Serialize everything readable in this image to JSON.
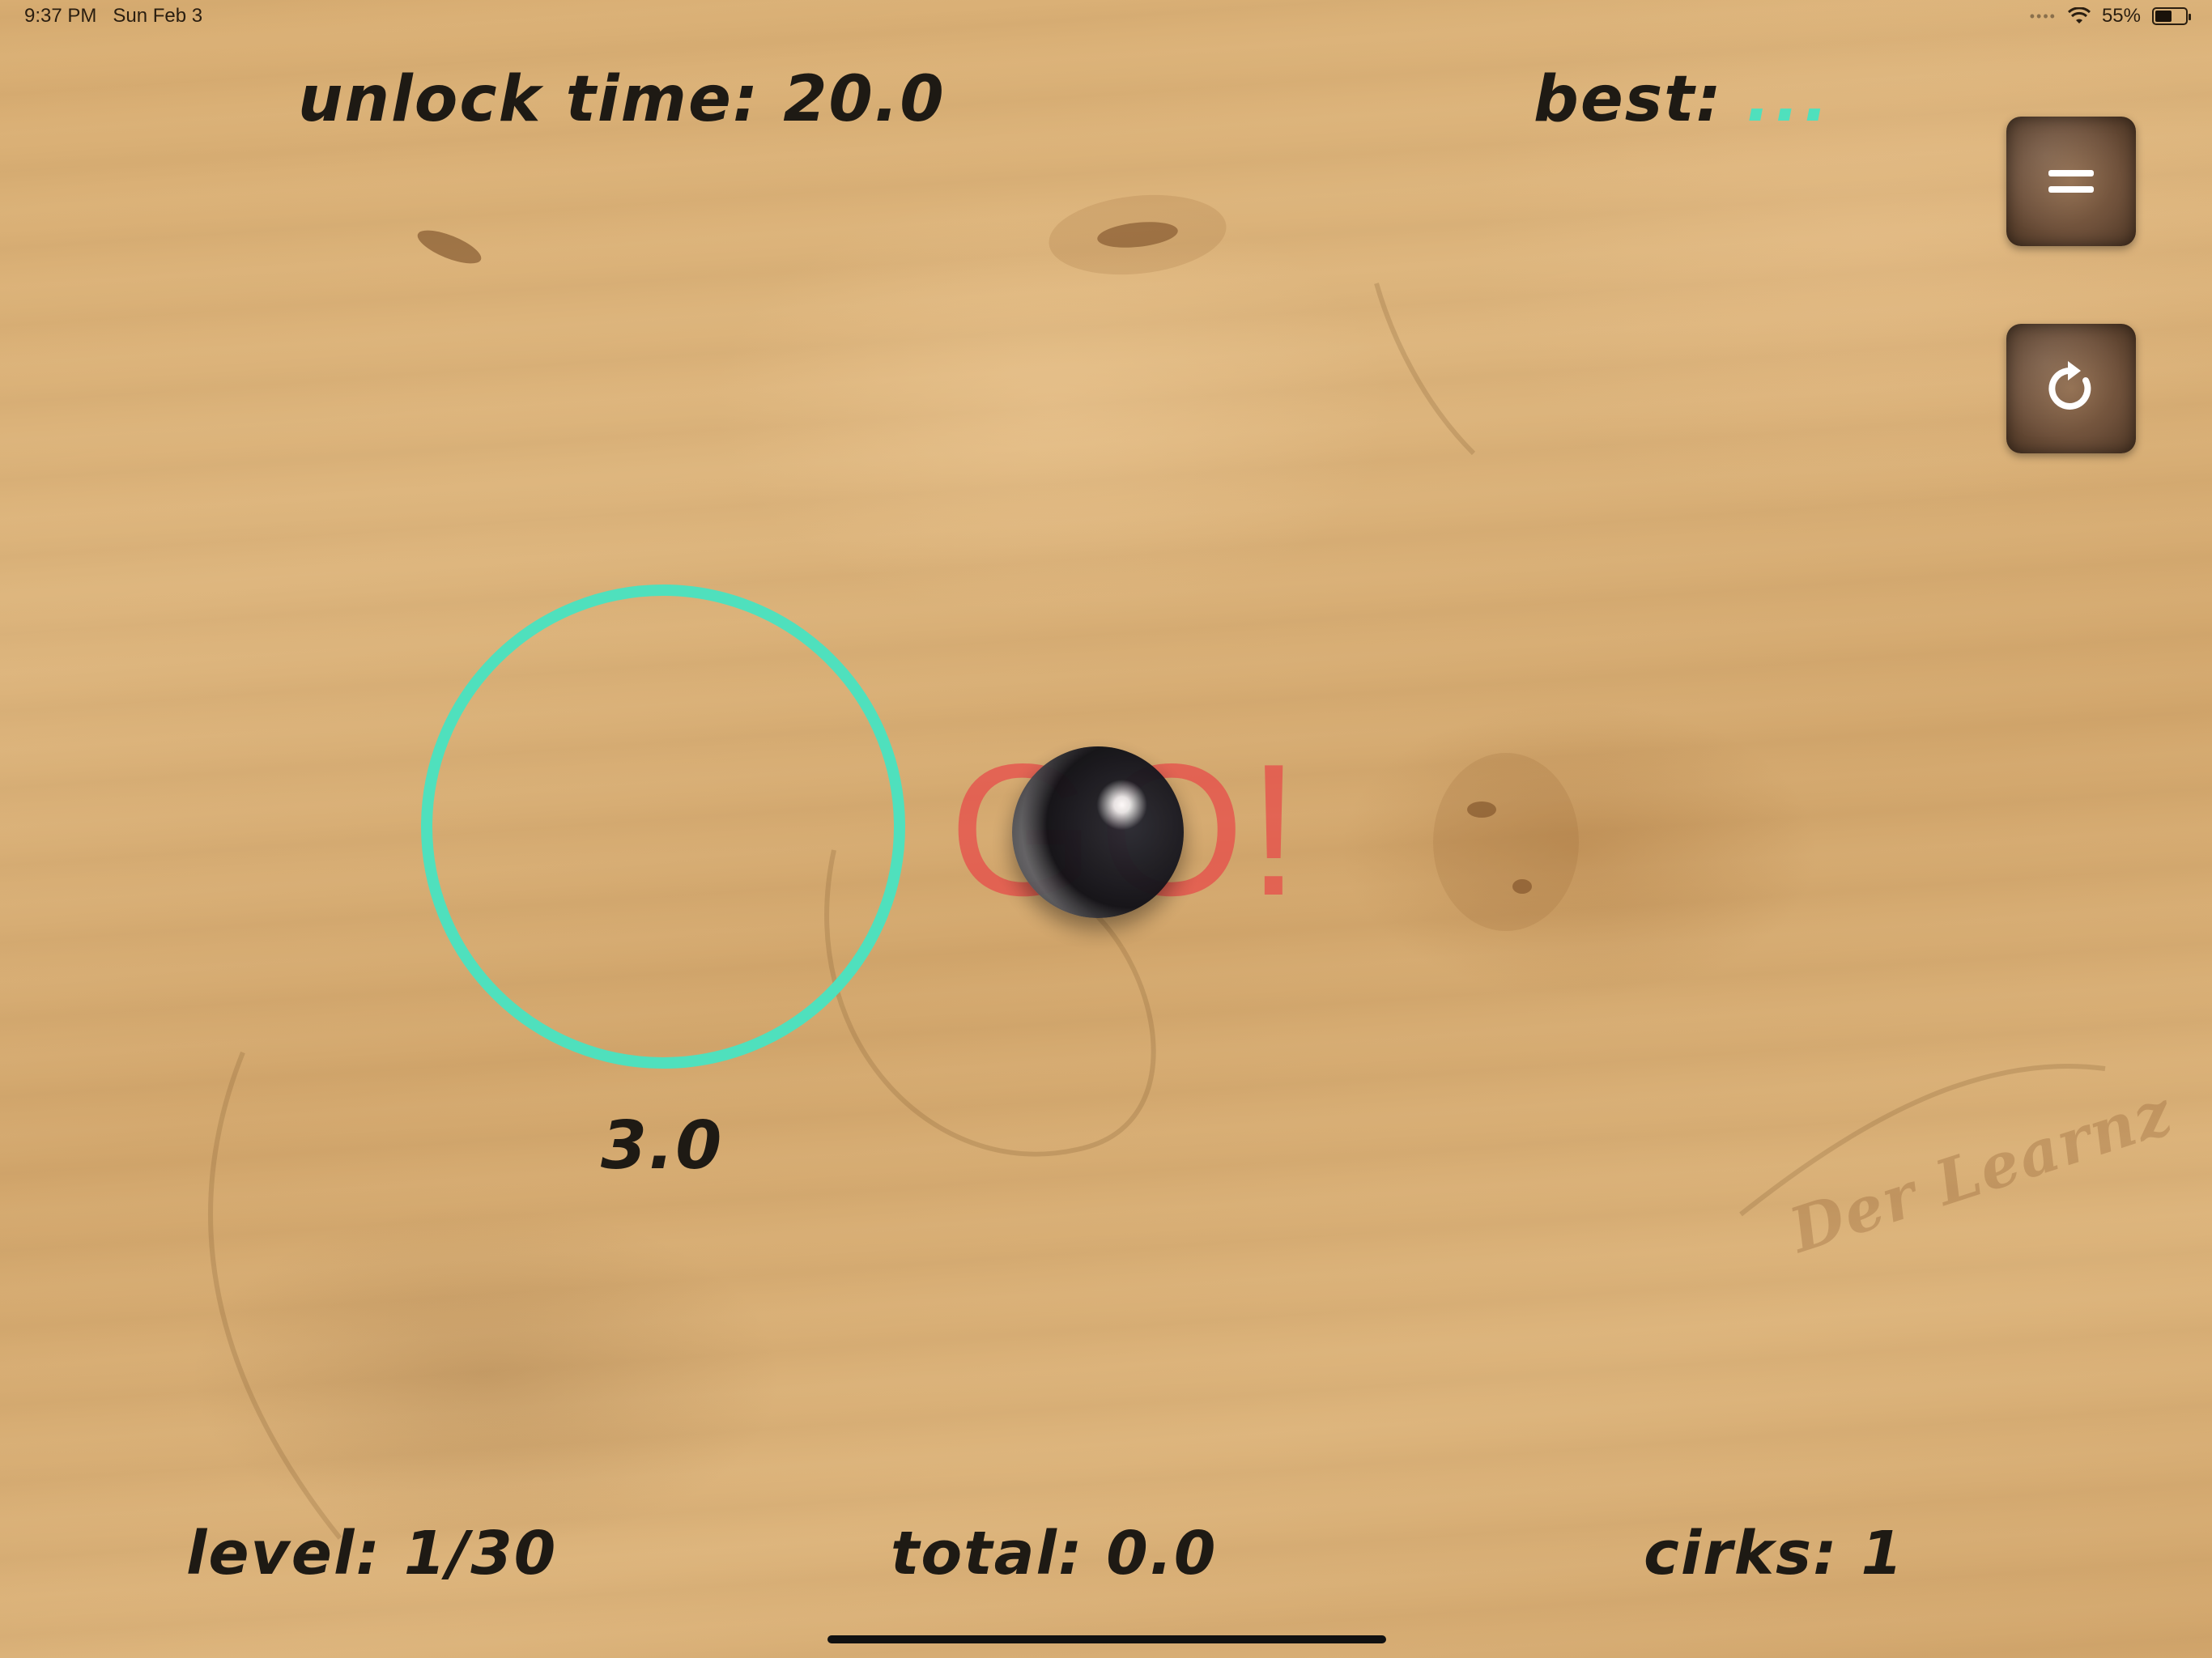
{
  "status_bar": {
    "time": "9:37 PM",
    "date": "Sun Feb 3",
    "battery_percent": "55%",
    "battery_level": 0.55
  },
  "hud": {
    "unlock_time": "unlock time: 20.0",
    "best_label": "best:",
    "best_value": "...",
    "level": "level: 1/30",
    "total": "total: 0.0",
    "cirks": "cirks: 1"
  },
  "buttons": {
    "menu_icon": "equals-icon",
    "restart_icon": "restart-icon"
  },
  "game": {
    "ring_time": "3.0",
    "go_text": "GO!",
    "ring_color": "#4fe0bd",
    "go_color": "#e84848"
  },
  "watermark": "Der Learnz"
}
